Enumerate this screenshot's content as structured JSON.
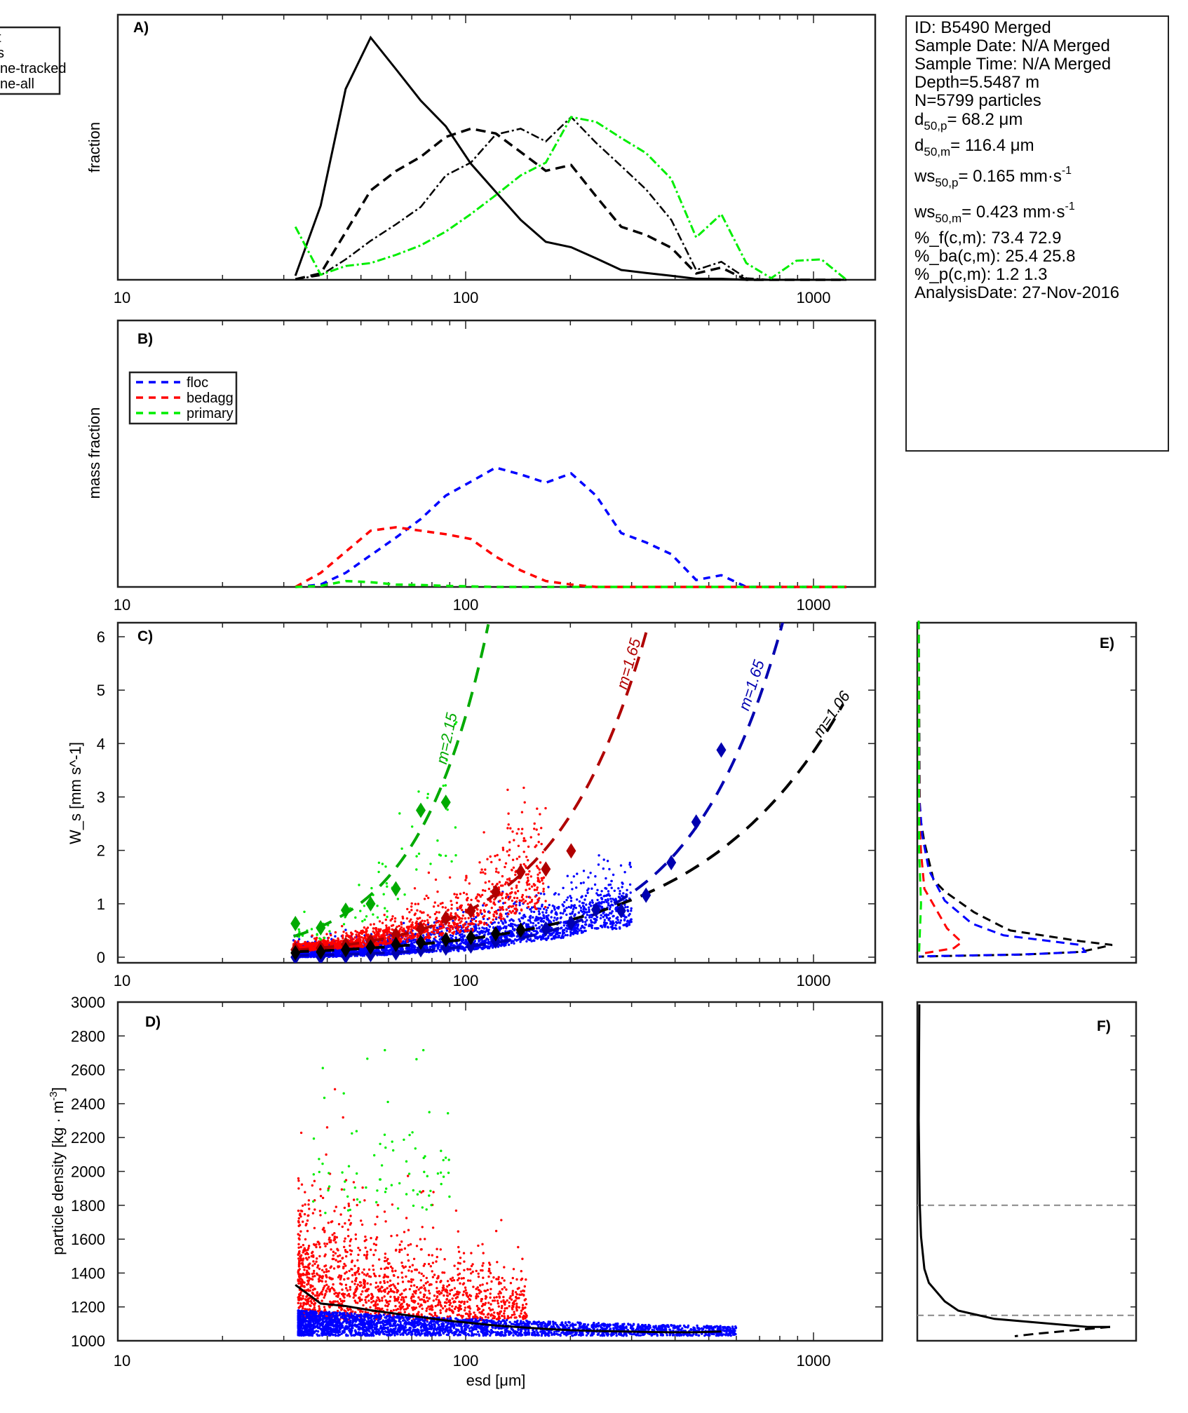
{
  "info_box": {
    "id": "ID: B5490 Merged",
    "sample_date": "Sample Date: N/A Merged",
    "sample_time": "Sample Time: N/A Merged",
    "depth": "Depth=5.5487 m",
    "n": "N=5799 particles",
    "d50p_sym": "d",
    "d50p_sub": "50,p",
    "d50p_val": "=  68.2 μm",
    "d50m_sym": "d",
    "d50m_sub": "50,m",
    "d50m_val": "= 116.4  μm",
    "ws50p_sym": "ws",
    "ws50p_sub": "50,p",
    "ws50p_val": "= 0.165 mm·s",
    "ws50p_sup": "-1",
    "ws50m_sym": "ws",
    "ws50m_sub": "50,m",
    "ws50m_val": "= 0.423 mm·s",
    "ws50m_sup": "-1",
    "pct_f": "%_f(c,m): 73.4 72.9",
    "pct_ba": "%_ba(c,m): 25.4 25.8",
    "pct_p": "%_p(c,m): 1.2 1.3",
    "analysis_date": "AnalysisDate: 27-Nov-2016"
  },
  "colors": {
    "floc": "#0000ff",
    "bedagg": "#ff0000",
    "primary": "#00ee00",
    "overall": "#000000",
    "floc_dark": "#0000b0",
    "bedagg_dark": "#b00000",
    "primary_dark": "#00aa00",
    "ref_line": "#888888"
  },
  "chart_data": [
    {
      "panel": "A)",
      "type": "line",
      "ylabel": "fraction",
      "xscale": "log",
      "xlim": [
        10,
        1500
      ],
      "xticks": [
        "10",
        "100",
        "1000"
      ],
      "legend": {
        "placement": "top-left (clipped)",
        "entries": [
          "t",
          "s",
          "ne-tracked",
          "ne-all"
        ]
      },
      "x": [
        32.4,
        38.3,
        45.2,
        53.3,
        63,
        74.3,
        87.7,
        103.5,
        122,
        144,
        170,
        201,
        237,
        280,
        330,
        390,
        460,
        543,
        641,
        756,
        893,
        1054,
        1244
      ],
      "ylim": [
        0,
        1
      ],
      "series": [
        {
          "style": "solid-black",
          "values": [
            0.015,
            0.28,
            0.72,
            0.914,
            0.795,
            0.676,
            0.579,
            0.438,
            0.332,
            0.226,
            0.143,
            0.123,
            0.081,
            0.037,
            0.026,
            0.015,
            0.004,
            0.004,
            0,
            0,
            0,
            0,
            0
          ]
        },
        {
          "style": "dashed-black",
          "values": [
            0.002,
            0.024,
            0.18,
            0.337,
            0.41,
            0.464,
            0.539,
            0.57,
            0.552,
            0.482,
            0.411,
            0.433,
            0.315,
            0.2,
            0.169,
            0.121,
            0.024,
            0.046,
            0,
            0,
            0,
            0,
            0
          ]
        },
        {
          "style": "dashdot-black",
          "values": [
            0.002,
            0.017,
            0.077,
            0.147,
            0.209,
            0.275,
            0.394,
            0.442,
            0.548,
            0.57,
            0.522,
            0.614,
            0.517,
            0.429,
            0.341,
            0.226,
            0.037,
            0.068,
            0.006,
            0,
            0,
            0,
            0
          ]
        },
        {
          "style": "dashdot-green",
          "values": [
            0.2,
            0.019,
            0.052,
            0.063,
            0.094,
            0.13,
            0.182,
            0.248,
            0.319,
            0.394,
            0.442,
            0.614,
            0.596,
            0.535,
            0.478,
            0.381,
            0.16,
            0.248,
            0.063,
            0.006,
            0.072,
            0.077,
            0
          ]
        }
      ]
    },
    {
      "panel": "B)",
      "type": "line",
      "ylabel": "mass fraction",
      "xscale": "log",
      "xlim": [
        10,
        1500
      ],
      "xticks": [
        "10",
        "100",
        "1000"
      ],
      "legend": {
        "placement": "upper-left",
        "entries": [
          "floc",
          "bedagg",
          "primary"
        ]
      },
      "x": [
        32.4,
        38.3,
        45.2,
        53.3,
        63,
        74.3,
        87.7,
        103.5,
        122,
        144,
        170,
        201,
        237,
        280,
        330,
        390,
        460,
        543,
        641,
        756,
        893,
        1054,
        1244
      ],
      "ylim": [
        0,
        1
      ],
      "series": [
        {
          "name": "floc",
          "values": [
            0,
            0.009,
            0.053,
            0.119,
            0.185,
            0.255,
            0.343,
            0.395,
            0.448,
            0.422,
            0.391,
            0.426,
            0.343,
            0.202,
            0.167,
            0.123,
            0.026,
            0.044,
            0,
            0,
            0,
            0,
            0
          ]
        },
        {
          "name": "bedagg",
          "values": [
            0,
            0.053,
            0.132,
            0.211,
            0.224,
            0.211,
            0.198,
            0.18,
            0.114,
            0.062,
            0.022,
            0.009,
            0,
            0,
            0,
            0,
            0,
            0,
            0,
            0,
            0,
            0,
            0
          ]
        },
        {
          "name": "primary",
          "values": [
            0,
            0.004,
            0.022,
            0.018,
            0.009,
            0.007,
            0.004,
            0.002,
            0,
            0,
            0,
            0,
            0,
            0,
            0,
            0,
            0,
            0,
            0,
            0,
            0,
            0,
            0
          ]
        }
      ]
    },
    {
      "panel": "C)",
      "type": "scatter",
      "ylabel": "W_s [mm s^-1]",
      "ylabel_main": "W",
      "ylabel_sub": "s",
      "ylabel_rest": " [mm s",
      "ylabel_sup": "-1",
      "ylabel_end": "]",
      "xscale": "log",
      "xlim": [
        10,
        1500
      ],
      "ylim": [
        0,
        6.3
      ],
      "xticks": [
        "10",
        "100",
        "1000"
      ],
      "yticks": [
        "0",
        "1",
        "2",
        "3",
        "4",
        "5",
        "6"
      ],
      "fits": [
        {
          "class": "primary",
          "label": "m=2.15",
          "m": 2.15,
          "anchor": [
            114.5,
            6.04
          ]
        },
        {
          "class": "bedagg",
          "label": "m=1.65",
          "m": 1.65,
          "anchor": [
            330,
            6.07
          ]
        },
        {
          "class": "floc",
          "label": "m=1.65",
          "m": 1.65,
          "anchor": [
            807,
            6.16
          ]
        },
        {
          "class": "overall",
          "label": "m=1.06",
          "m": 1.06,
          "anchor": [
            1200,
            4.67
          ]
        }
      ],
      "medians": {
        "primary": {
          "x": [
            32.4,
            38.3,
            45.2,
            53.3,
            63,
            74.3,
            87.7
          ],
          "y": [
            0.63,
            0.55,
            0.88,
            1.0,
            1.28,
            2.75,
            2.9
          ]
        },
        "bedagg": {
          "x": [
            32.4,
            38.3,
            45.2,
            53.3,
            63,
            74.3,
            87.7,
            103.5,
            122,
            144,
            170,
            201
          ],
          "y": [
            0.14,
            0.17,
            0.24,
            0.3,
            0.42,
            0.53,
            0.73,
            0.87,
            1.22,
            1.6,
            1.65,
            1.99
          ]
        },
        "floc": {
          "x": [
            32.4,
            38.3,
            45.2,
            53.3,
            63,
            74.3,
            87.7,
            103.5,
            122,
            144,
            170,
            201,
            237,
            280,
            330,
            390,
            460,
            543
          ],
          "y": [
            0,
            0,
            0.02,
            0.05,
            0.08,
            0.14,
            0.17,
            0.21,
            0.3,
            0.46,
            0.53,
            0.64,
            0.89,
            0.87,
            1.16,
            1.77,
            2.53,
            3.88
          ]
        },
        "overall": {
          "x": [
            32.4,
            38.3,
            45.2,
            53.3,
            63,
            74.3,
            87.7,
            103.5,
            122,
            144
          ],
          "y": [
            0.08,
            0.1,
            0.14,
            0.19,
            0.24,
            0.28,
            0.33,
            0.37,
            0.44,
            0.51
          ]
        }
      }
    },
    {
      "panel": "D)",
      "type": "scatter",
      "xlabel": "esd [μm]",
      "ylabel": "particle density [kg · m^-3]",
      "ylabel_main": "particle density [kg · m",
      "ylabel_sup": "-3",
      "ylabel_end": "]",
      "xscale": "log",
      "xlim": [
        10,
        1500
      ],
      "ylim": [
        1000,
        3000
      ],
      "xticks": [
        "10",
        "100",
        "1000"
      ],
      "yticks": [
        "1000",
        "1200",
        "1400",
        "1600",
        "1800",
        "2000",
        "2200",
        "2400",
        "2600",
        "2800",
        "3000"
      ],
      "median_line": {
        "x": [
          32.4,
          38.3,
          45.2,
          53.3,
          63,
          74.3,
          87.7,
          103.5,
          122,
          144,
          170,
          201,
          237,
          280,
          330,
          390,
          460,
          543
        ],
        "y": [
          1330,
          1220,
          1205,
          1180,
          1160,
          1140,
          1120,
          1105,
          1090,
          1080,
          1070,
          1062,
          1058,
          1055,
          1052,
          1050,
          1050,
          1055
        ]
      }
    },
    {
      "panel": "E)",
      "type": "line",
      "ylim": [
        0,
        6.3
      ],
      "series": [
        {
          "class": "overall",
          "x": [
            0,
            0.005,
            0.027,
            0.07,
            0.123,
            0.262,
            0.39,
            0.433,
            0.765,
            0.914,
            0.765,
            0.5,
            0.1,
            0
          ],
          "y": [
            6.3,
            2.67,
            2.15,
            1.45,
            1.23,
            0.84,
            0.58,
            0.5,
            0.3,
            0.23,
            0.1,
            0.05,
            0.02,
            0.01
          ]
        },
        {
          "class": "floc",
          "x": [
            0,
            0.003,
            0.016,
            0.048,
            0.123,
            0.251,
            0.401,
            0.765,
            0.786,
            0.48,
            0.048,
            0
          ],
          "y": [
            6.3,
            3.0,
            2.3,
            1.63,
            1.06,
            0.63,
            0.41,
            0.23,
            0.1,
            0.05,
            0.02,
            0.01
          ]
        },
        {
          "class": "bedagg",
          "x": [
            0,
            0.003,
            0.011,
            0.027,
            0.134,
            0.203,
            0.166,
            0.005
          ],
          "y": [
            6.3,
            2.58,
            1.97,
            1.28,
            0.54,
            0.28,
            0.17,
            0.06
          ]
        },
        {
          "class": "primary",
          "x": [
            0,
            0.002,
            0.011,
            0.001
          ],
          "y": [
            6.3,
            2.0,
            1.0,
            0.0
          ]
        }
      ]
    },
    {
      "panel": "F)",
      "type": "line",
      "ylim": [
        1000,
        3000
      ],
      "reference_lines": [
        1800,
        1150
      ],
      "series": [
        {
          "style": "solid",
          "x": [
            0.003,
            0.0,
            0.005,
            0.011,
            0.027,
            0.048,
            0.123,
            0.187,
            0.358,
            0.797,
            0.904
          ],
          "y": [
            2986,
            2300,
            1808,
            1616,
            1425,
            1342,
            1233,
            1178,
            1129,
            1082,
            1082
          ]
        },
        {
          "style": "dashed",
          "x": [
            0.904,
            0.551,
            0.454
          ],
          "y": [
            1082,
            1041,
            1027
          ]
        }
      ]
    }
  ]
}
